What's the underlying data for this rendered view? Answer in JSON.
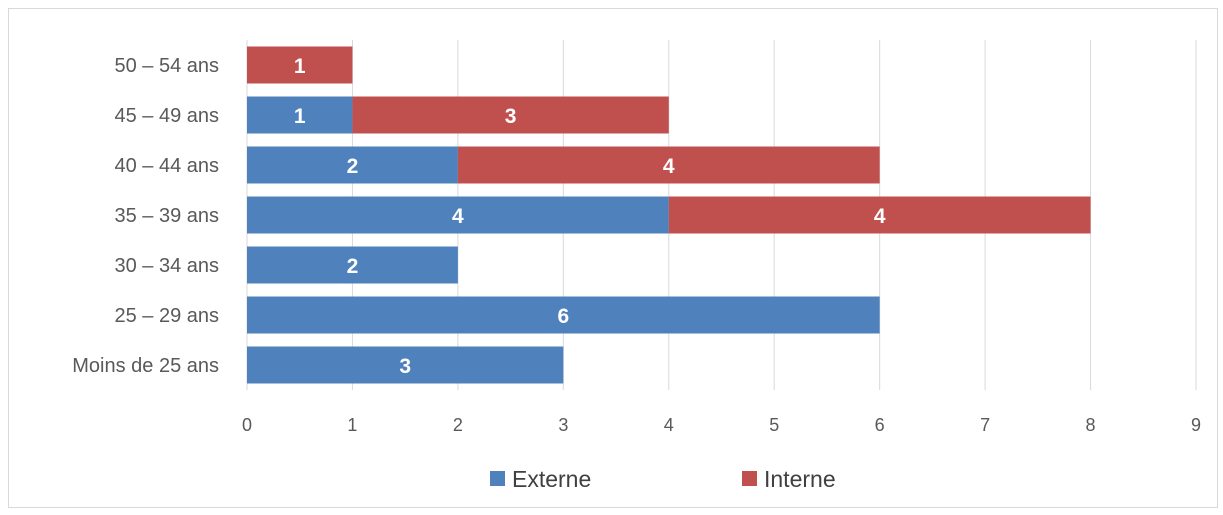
{
  "chart_data": {
    "type": "bar",
    "orientation": "horizontal",
    "stacked": true,
    "categories": [
      "Moins de 25 ans",
      "25 – 29 ans",
      "30 – 34 ans",
      "35 – 39 ans",
      "40 – 44 ans",
      "45 – 49 ans",
      "50 – 54 ans"
    ],
    "series": [
      {
        "name": "Externe",
        "color": "#4f81bd",
        "values": [
          3,
          6,
          2,
          4,
          2,
          1,
          0
        ]
      },
      {
        "name": "Interne",
        "color": "#c0504d",
        "values": [
          0,
          0,
          0,
          4,
          4,
          3,
          1
        ]
      }
    ],
    "xlim": [
      0,
      9
    ],
    "xticks": [
      "0",
      "1",
      "2",
      "3",
      "4",
      "5",
      "6",
      "7",
      "8",
      "9"
    ],
    "grid": true,
    "data_labels": true,
    "legend_position": "bottom"
  }
}
